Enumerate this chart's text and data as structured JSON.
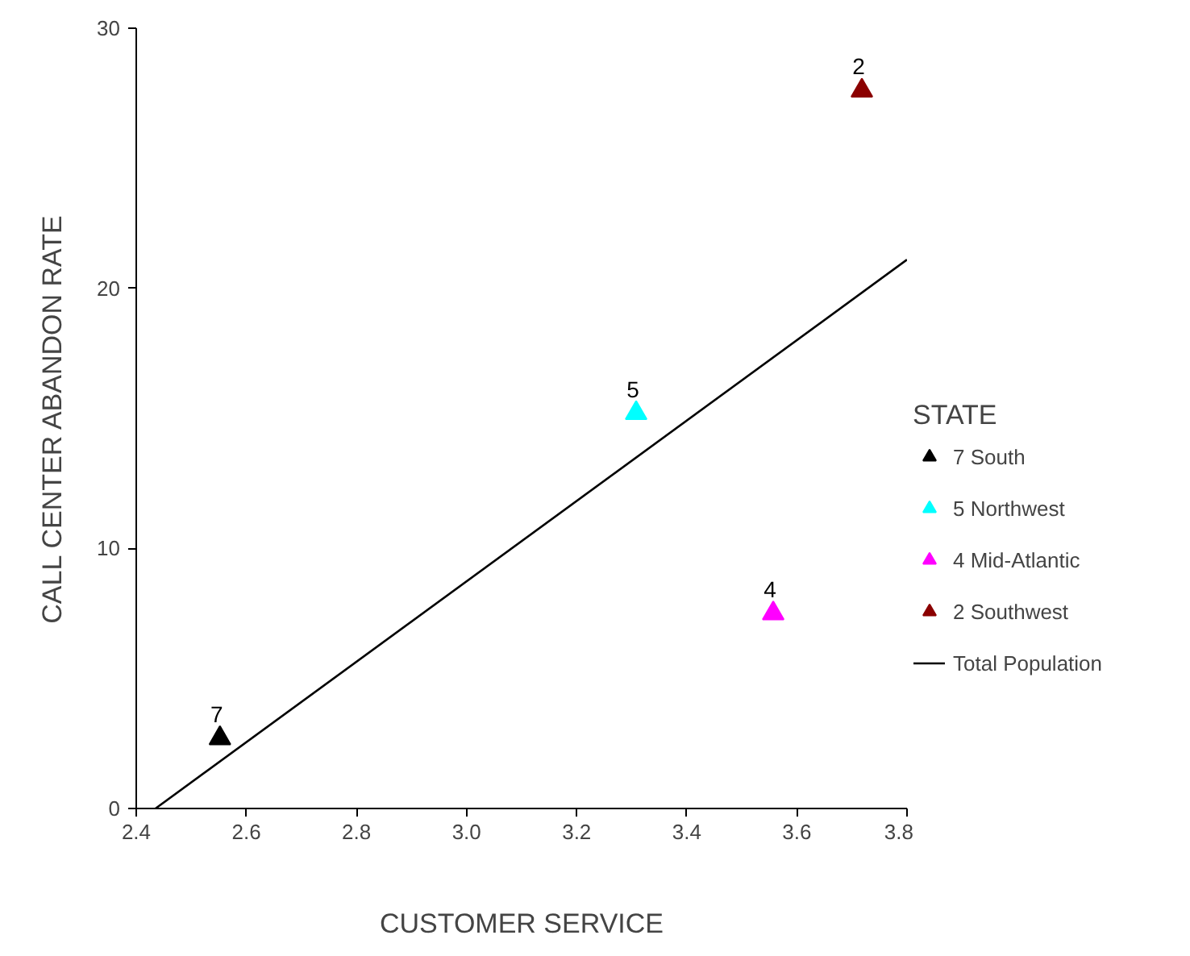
{
  "chart_data": {
    "type": "scatter",
    "xlabel": "CUSTOMER SERVICE",
    "ylabel": "CALL CENTER ABANDON RATE",
    "legend_title": "STATE",
    "xlim": [
      2.4,
      3.8
    ],
    "xticks": [
      {
        "value": 2.4,
        "label": "2.4"
      },
      {
        "value": 2.6,
        "label": "2.6"
      },
      {
        "value": 2.8,
        "label": "2.8"
      },
      {
        "value": 3.0,
        "label": "3.0"
      },
      {
        "value": 3.2,
        "label": "3.2"
      },
      {
        "value": 3.4,
        "label": "3.4"
      },
      {
        "value": 3.6,
        "label": "3.6"
      },
      {
        "value": 3.8,
        "label": "3.8"
      }
    ],
    "ylim": [
      0,
      30
    ],
    "yticks": [
      0,
      10,
      20,
      30
    ],
    "grid": false,
    "legend": "right",
    "marker": "triangle",
    "series": [
      {
        "name": "7 South",
        "color": "#000000",
        "x": [
          2.552
        ],
        "values": [
          2.7
        ]
      },
      {
        "name": "5 Northwest",
        "color": "#00ffff",
        "x": [
          3.308
        ],
        "values": [
          15.2
        ]
      },
      {
        "name": "4 Mid-Atlantic",
        "color": "#ff00ff",
        "x": [
          3.557
        ],
        "values": [
          7.5
        ]
      },
      {
        "name": "2 Southwest",
        "color": "#8b0000",
        "x": [
          3.718
        ],
        "values": [
          27.6
        ]
      },
      {
        "name": "Total Population",
        "type": "line",
        "marker": "none",
        "color": "#000000",
        "x": [
          2.435,
          3.8
        ],
        "values": [
          0,
          21.1
        ]
      }
    ],
    "annotations": [
      {
        "text": "7",
        "x": 2.552,
        "y": 2.7
      },
      {
        "text": "5",
        "x": 3.308,
        "y": 15.2
      },
      {
        "text": "4",
        "x": 3.557,
        "y": 7.5
      },
      {
        "text": "2",
        "x": 3.718,
        "y": 27.6
      }
    ]
  }
}
